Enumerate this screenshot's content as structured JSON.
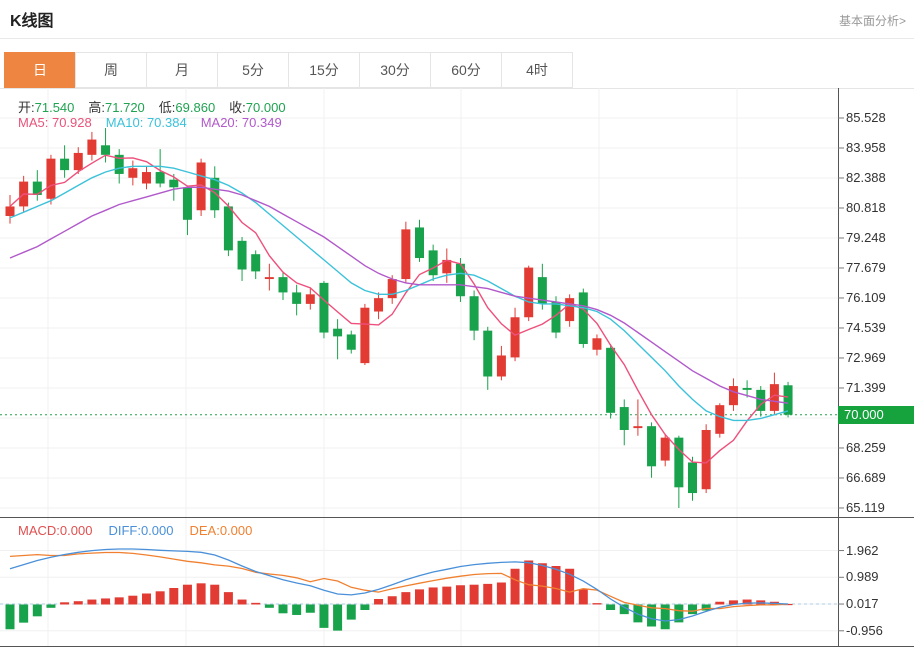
{
  "page": {
    "title": "K线图",
    "analysis_link": "基本面分析>"
  },
  "tabs": [
    {
      "id": "day",
      "label": "日",
      "active": true
    },
    {
      "id": "week",
      "label": "周",
      "active": false
    },
    {
      "id": "month",
      "label": "月",
      "active": false
    },
    {
      "id": "5min",
      "label": "5分",
      "active": false
    },
    {
      "id": "15min",
      "label": "15分",
      "active": false
    },
    {
      "id": "30min",
      "label": "30分",
      "active": false
    },
    {
      "id": "60min",
      "label": "60分",
      "active": false
    },
    {
      "id": "4hour",
      "label": "4时",
      "active": false
    }
  ],
  "kline_header": {
    "open_label": "开:",
    "open_value": "71.540",
    "high_label": "高:",
    "high_value": "71.720",
    "low_label": "低:",
    "low_value": "69.860",
    "close_label": "收:",
    "close_value": "70.000"
  },
  "ma_header": {
    "ma5_label": "MA5:",
    "ma5_value": "70.928",
    "ma10_label": "MA10:",
    "ma10_value": "70.384",
    "ma20_label": "MA20:",
    "ma20_value": "70.349"
  },
  "macd_header": {
    "macd_label": "MACD:",
    "macd_value": "0.000",
    "diff_label": "DIFF:",
    "diff_value": "0.000",
    "dea_label": "DEA:",
    "dea_value": "0.000"
  },
  "colors": {
    "up": "#e13b34",
    "down": "#18a24b",
    "ma5": "#ee4f7b",
    "ma10": "#3bc2da",
    "ma20": "#b159cb",
    "diff": "#4a90d9",
    "dea": "#f08030",
    "price_line": "#23a14d",
    "price_tag_bg": "#16a33e",
    "grid": "#f0f0f0",
    "frame": "#555",
    "zero_dash": "#a8cce4",
    "tab_active_bg": "#ee8540"
  },
  "chart_data": {
    "type": "candlestick_with_macd",
    "kline": {
      "y_ticks": [
        85.528,
        83.958,
        82.388,
        80.818,
        79.248,
        77.679,
        76.109,
        74.539,
        72.969,
        71.399,
        68.259,
        66.689,
        65.119
      ],
      "last_price_value": 70.0,
      "last_price_label": "70.000",
      "candles": [
        [
          80.4,
          81.5,
          80.0,
          80.9
        ],
        [
          80.9,
          82.5,
          80.6,
          82.2
        ],
        [
          82.2,
          82.8,
          81.2,
          81.5
        ],
        [
          81.3,
          83.6,
          81.0,
          83.4
        ],
        [
          83.4,
          84.1,
          82.4,
          82.8
        ],
        [
          82.8,
          84.0,
          82.6,
          83.7
        ],
        [
          83.6,
          84.8,
          83.3,
          84.4
        ],
        [
          84.1,
          85.0,
          83.2,
          83.6
        ],
        [
          83.6,
          83.9,
          82.1,
          82.6
        ],
        [
          82.4,
          83.3,
          82.0,
          82.9
        ],
        [
          82.1,
          83.0,
          81.8,
          82.7
        ],
        [
          82.7,
          83.9,
          81.9,
          82.1
        ],
        [
          82.3,
          82.6,
          81.2,
          81.9
        ],
        [
          81.9,
          82.0,
          79.4,
          80.2
        ],
        [
          80.7,
          83.4,
          80.4,
          83.2
        ],
        [
          82.4,
          83.0,
          80.3,
          80.7
        ],
        [
          80.9,
          81.1,
          78.3,
          78.6
        ],
        [
          79.1,
          79.3,
          77.0,
          77.6
        ],
        [
          78.4,
          78.6,
          77.1,
          77.5
        ],
        [
          77.1,
          77.9,
          76.5,
          77.2
        ],
        [
          77.2,
          77.5,
          76.0,
          76.4
        ],
        [
          76.4,
          76.8,
          75.2,
          75.8
        ],
        [
          75.8,
          76.6,
          75.5,
          76.3
        ],
        [
          76.9,
          77.0,
          74.0,
          74.3
        ],
        [
          74.5,
          75.0,
          72.9,
          74.1
        ],
        [
          74.2,
          74.4,
          73.2,
          73.4
        ],
        [
          72.7,
          75.8,
          72.6,
          75.6
        ],
        [
          75.4,
          76.4,
          75.0,
          76.1
        ],
        [
          76.1,
          77.3,
          75.8,
          77.1
        ],
        [
          77.1,
          80.1,
          76.9,
          79.7
        ],
        [
          79.8,
          80.2,
          78.0,
          78.2
        ],
        [
          78.6,
          78.9,
          77.0,
          77.3
        ],
        [
          77.4,
          78.7,
          76.9,
          78.1
        ],
        [
          77.9,
          78.2,
          75.9,
          76.2
        ],
        [
          76.2,
          76.5,
          73.9,
          74.4
        ],
        [
          74.4,
          74.6,
          71.3,
          72.0
        ],
        [
          72.0,
          73.6,
          71.8,
          73.1
        ],
        [
          73.0,
          75.6,
          72.8,
          75.1
        ],
        [
          75.1,
          77.8,
          74.9,
          77.7
        ],
        [
          77.2,
          77.9,
          75.5,
          75.8
        ],
        [
          75.9,
          76.2,
          74.0,
          74.3
        ],
        [
          74.9,
          76.3,
          74.6,
          76.1
        ],
        [
          76.4,
          76.6,
          73.5,
          73.7
        ],
        [
          73.4,
          74.2,
          73.1,
          74.0
        ],
        [
          73.5,
          73.7,
          69.8,
          70.1
        ],
        [
          70.4,
          70.8,
          68.4,
          69.2
        ],
        [
          69.3,
          70.8,
          68.9,
          69.4
        ],
        [
          69.4,
          69.6,
          66.7,
          67.3
        ],
        [
          67.6,
          69.0,
          67.3,
          68.8
        ],
        [
          68.8,
          68.9,
          65.12,
          66.2
        ],
        [
          67.5,
          67.8,
          65.5,
          65.9
        ],
        [
          66.1,
          69.5,
          65.9,
          69.2
        ],
        [
          69.0,
          70.6,
          68.8,
          70.5
        ],
        [
          70.5,
          71.9,
          70.2,
          71.5
        ],
        [
          71.4,
          71.8,
          70.9,
          71.3
        ],
        [
          71.3,
          71.5,
          69.9,
          70.2
        ],
        [
          70.2,
          72.2,
          70.0,
          71.6
        ],
        [
          71.54,
          71.72,
          69.86,
          70.0
        ]
      ],
      "ma10": [
        80.3,
        80.6,
        80.9,
        81.2,
        81.6,
        82.0,
        82.4,
        82.7,
        82.9,
        83.0,
        83.0,
        83.0,
        82.9,
        82.7,
        82.5,
        82.3,
        82.0,
        81.6,
        81.1,
        80.5,
        79.9,
        79.3,
        78.7,
        78.1,
        77.5,
        76.9,
        76.5,
        76.3,
        76.3,
        76.5,
        76.8,
        77.1,
        77.3,
        77.4,
        77.3,
        77.0,
        76.6,
        76.2,
        75.9,
        75.8,
        75.8,
        75.7,
        75.6,
        75.4,
        75.0,
        74.4,
        73.7,
        73.0,
        72.3,
        71.5,
        70.8,
        70.2,
        69.9,
        69.7,
        69.7,
        69.8,
        70.0,
        70.2
      ],
      "ma20": [
        78.2,
        78.5,
        78.8,
        79.2,
        79.6,
        80.0,
        80.4,
        80.7,
        81.0,
        81.2,
        81.4,
        81.6,
        81.8,
        81.9,
        81.9,
        81.8,
        81.7,
        81.5,
        81.2,
        80.9,
        80.5,
        80.1,
        79.7,
        79.3,
        78.8,
        78.3,
        77.8,
        77.4,
        77.1,
        76.9,
        76.8,
        76.8,
        76.8,
        76.8,
        76.7,
        76.6,
        76.4,
        76.2,
        76.1,
        76.0,
        75.9,
        75.8,
        75.7,
        75.5,
        75.2,
        74.8,
        74.3,
        73.8,
        73.3,
        72.8,
        72.3,
        71.9,
        71.5,
        71.2,
        71.0,
        70.8,
        70.7,
        70.6
      ]
    },
    "macd": {
      "y_ticks": [
        1.962,
        0.989,
        0.017,
        -0.956
      ],
      "hist": [
        -0.9,
        -0.66,
        -0.43,
        -0.12,
        0.08,
        0.12,
        0.18,
        0.22,
        0.26,
        0.32,
        0.4,
        0.48,
        0.6,
        0.72,
        0.77,
        0.72,
        0.45,
        0.18,
        0.06,
        -0.12,
        -0.32,
        -0.38,
        -0.3,
        -0.85,
        -0.95,
        -0.55,
        -0.2,
        0.2,
        0.3,
        0.45,
        0.55,
        0.62,
        0.65,
        0.7,
        0.72,
        0.75,
        0.8,
        1.3,
        1.6,
        1.5,
        1.4,
        1.3,
        0.55,
        0.05,
        -0.2,
        -0.35,
        -0.65,
        -0.8,
        -0.9,
        -0.65,
        -0.35,
        -0.22,
        0.1,
        0.15,
        0.18,
        0.15,
        0.1,
        0.02
      ],
      "diff": [
        1.3,
        1.45,
        1.6,
        1.72,
        1.82,
        1.9,
        1.96,
        2.0,
        2.02,
        2.02,
        2.0,
        1.97,
        1.95,
        1.93,
        1.9,
        1.8,
        1.62,
        1.4,
        1.2,
        1.05,
        0.9,
        0.78,
        0.68,
        0.52,
        0.38,
        0.35,
        0.42,
        0.55,
        0.72,
        0.9,
        1.05,
        1.18,
        1.28,
        1.38,
        1.45,
        1.5,
        1.53,
        1.55,
        1.52,
        1.42,
        1.28,
        1.1,
        0.85,
        0.55,
        0.2,
        -0.1,
        -0.35,
        -0.52,
        -0.6,
        -0.55,
        -0.42,
        -0.25,
        -0.1,
        0.0,
        0.05,
        0.06,
        0.04,
        0.02
      ]
    }
  }
}
